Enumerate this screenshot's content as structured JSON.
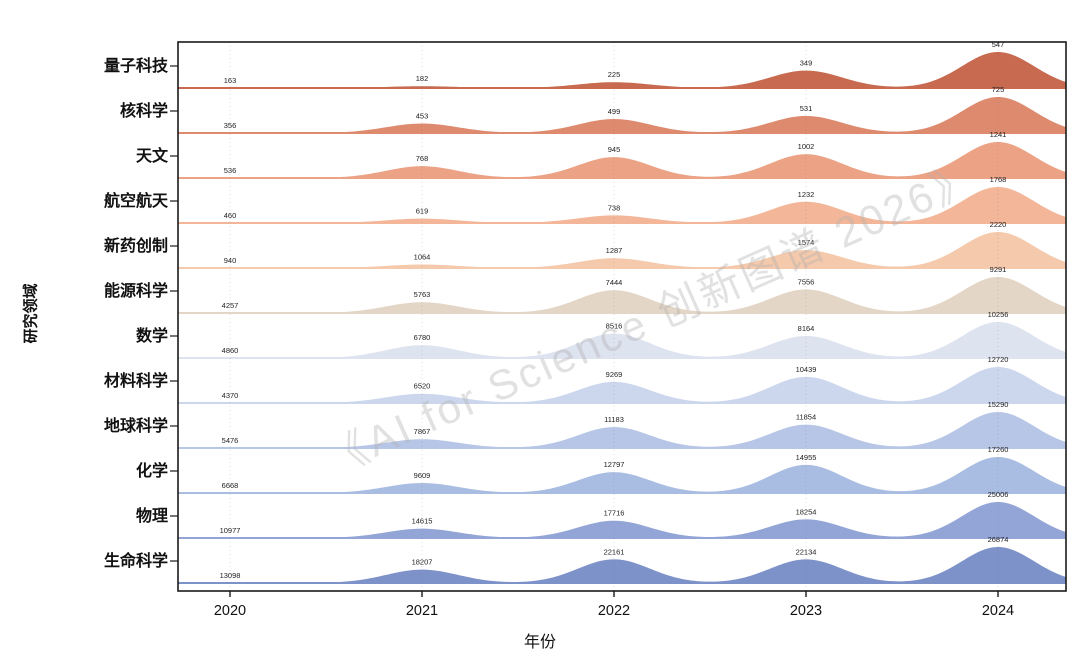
{
  "chart_data": {
    "type": "area",
    "variant": "ridgeline",
    "title": "",
    "xlabel": "年份",
    "ylabel": "研究领域",
    "x_categories": [
      "2020",
      "2021",
      "2022",
      "2023",
      "2024"
    ],
    "grid": "vertical-dotted",
    "legend": "none",
    "watermark": "《AI for Science 创新图谱 2026》",
    "axis_color": "#1a1a1a",
    "value_label_color": "#222222",
    "series": [
      {
        "name": "量子科技",
        "values": [
          163,
          182,
          225,
          349,
          547
        ],
        "color": "#c86a50"
      },
      {
        "name": "核科学",
        "values": [
          356,
          453,
          499,
          531,
          725
        ],
        "color": "#dd8a6e"
      },
      {
        "name": "天文",
        "values": [
          536,
          768,
          945,
          1002,
          1241
        ],
        "color": "#eca285"
      },
      {
        "name": "航空航天",
        "values": [
          460,
          619,
          738,
          1232,
          1768
        ],
        "color": "#f3b698"
      },
      {
        "name": "新药创制",
        "values": [
          940,
          1064,
          1287,
          1574,
          2220
        ],
        "color": "#f5c9ac"
      },
      {
        "name": "能源科学",
        "values": [
          4257,
          5763,
          7444,
          7556,
          9291
        ],
        "color": "#e4d6c6"
      },
      {
        "name": "数学",
        "values": [
          4860,
          6780,
          8516,
          8164,
          10256
        ],
        "color": "#dee3f0"
      },
      {
        "name": "材料科学",
        "values": [
          4370,
          6520,
          9269,
          10439,
          12720
        ],
        "color": "#ccd7ee"
      },
      {
        "name": "地球科学",
        "values": [
          5476,
          7867,
          11183,
          11854,
          15290
        ],
        "color": "#b7c6e6"
      },
      {
        "name": "化学",
        "values": [
          6668,
          9609,
          12797,
          14955,
          17260
        ],
        "color": "#a9bce2"
      },
      {
        "name": "物理",
        "values": [
          10977,
          14615,
          17716,
          18254,
          25006
        ],
        "color": "#92a5d6"
      },
      {
        "name": "生命科学",
        "values": [
          13098,
          18207,
          22161,
          22134,
          26874
        ],
        "color": "#7e92ca"
      }
    ]
  }
}
